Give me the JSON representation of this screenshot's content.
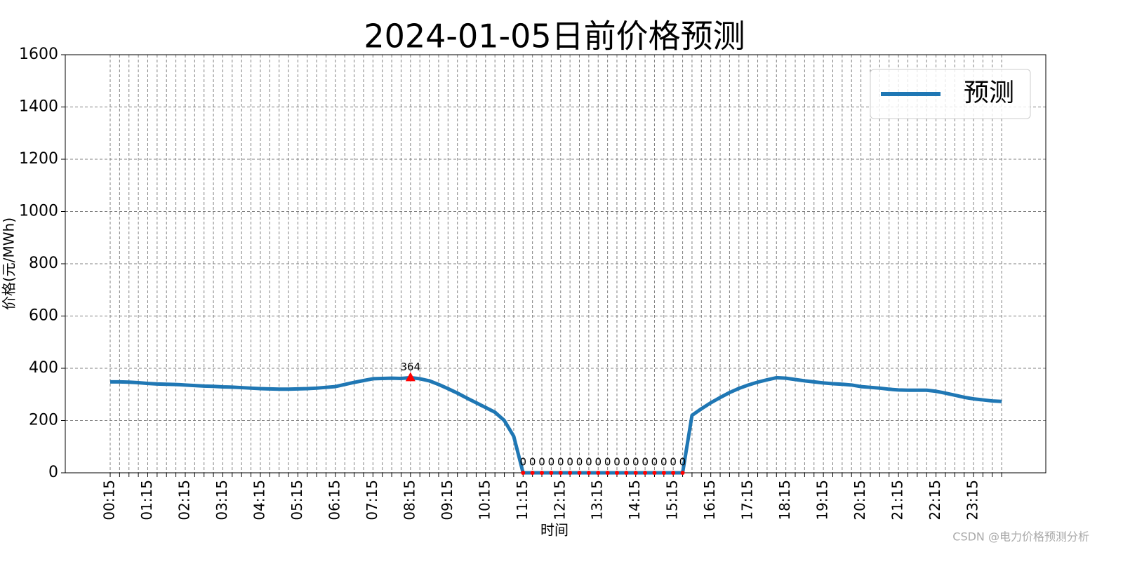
{
  "chart_data": {
    "type": "line",
    "title": "2024-01-05日前价格预测",
    "xlabel": "时间",
    "ylabel": "价格(元/MWh)",
    "watermark": "CSDN @电力价格预测分析",
    "categories": [
      "00:15",
      null,
      null,
      null,
      "01:15",
      null,
      null,
      null,
      "02:15",
      null,
      null,
      null,
      "03:15",
      null,
      null,
      null,
      "04:15",
      null,
      null,
      null,
      "05:15",
      null,
      null,
      null,
      "06:15",
      null,
      null,
      null,
      "07:15",
      null,
      null,
      null,
      "08:15",
      null,
      null,
      null,
      "09:15",
      null,
      null,
      null,
      "10:15",
      null,
      null,
      null,
      "11:15",
      null,
      null,
      null,
      "12:15",
      null,
      null,
      null,
      "13:15",
      null,
      null,
      null,
      "14:15",
      null,
      null,
      null,
      "15:15",
      null,
      null,
      null,
      "16:15",
      null,
      null,
      null,
      "17:15",
      null,
      null,
      null,
      "18:15",
      null,
      null,
      null,
      "19:15",
      null,
      null,
      null,
      "20:15",
      null,
      null,
      null,
      "21:15",
      null,
      null,
      null,
      "22:15",
      null,
      null,
      null,
      "23:15",
      null,
      null,
      null
    ],
    "series": [
      {
        "name": "预测",
        "color": "#1f77b4",
        "values": [
          348,
          348,
          347,
          345,
          342,
          340,
          339,
          338,
          336,
          334,
          332,
          331,
          329,
          328,
          326,
          324,
          322,
          321,
          320,
          320,
          321,
          322,
          324,
          327,
          330,
          338,
          346,
          353,
          360,
          361,
          362,
          361,
          364,
          360,
          352,
          338,
          322,
          305,
          286,
          268,
          250,
          232,
          200,
          140,
          0,
          0,
          0,
          0,
          0,
          0,
          0,
          0,
          0,
          0,
          0,
          0,
          0,
          0,
          0,
          0,
          0,
          0,
          220,
          245,
          268,
          288,
          307,
          323,
          336,
          347,
          356,
          363.99,
          362,
          357,
          352,
          348,
          344,
          341,
          339,
          336,
          330,
          327,
          324,
          320,
          317,
          316,
          316,
          316,
          312,
          305,
          297,
          289,
          283,
          279,
          275,
          273
        ]
      }
    ],
    "ylim": [
      0,
      1600
    ],
    "yticks": [
      0,
      200,
      400,
      600,
      800,
      1000,
      1200,
      1400,
      1600
    ],
    "grid": true,
    "legend": "upper right",
    "annotation_color": "#ff0000"
  }
}
